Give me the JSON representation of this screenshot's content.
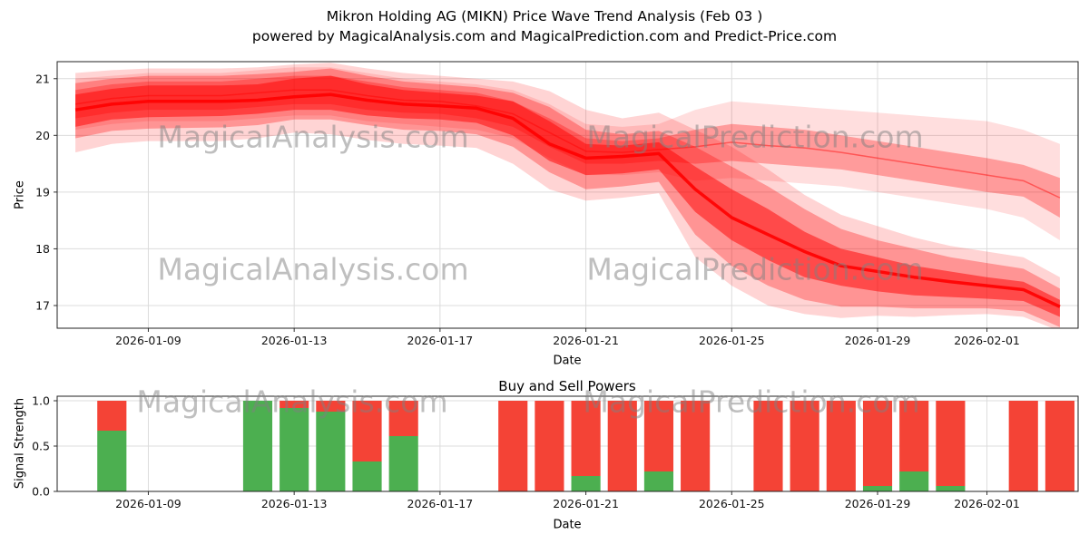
{
  "figure": {
    "title_line1": "Mikron Holding AG (MIKN) Price Wave Trend Analysis (Feb 03 )",
    "title_line2": "powered by MagicalAnalysis.com and MagicalPrediction.com and Predict-Price.com"
  },
  "watermarks": {
    "left": "MagicalAnalysis.com",
    "right": "MagicalPrediction.com"
  },
  "chart_data": [
    {
      "type": "area",
      "title": "",
      "xlabel": "Date",
      "ylabel": "Price",
      "color": "#ff0000",
      "grid": true,
      "ylim": [
        16.6,
        21.3
      ],
      "yticks": [
        17,
        18,
        19,
        20,
        21
      ],
      "ytick_labels": [
        "17",
        "18",
        "19",
        "20",
        "21"
      ],
      "xtick_days": [
        2,
        6,
        10,
        14,
        18,
        22,
        25
      ],
      "xtick_labels": [
        "2026-01-09",
        "2026-01-13",
        "2026-01-17",
        "2026-01-21",
        "2026-01-25",
        "2026-01-29",
        "2026-02-01"
      ],
      "dates": [
        "2026-01-07",
        "2026-01-08",
        "2026-01-09",
        "2026-01-10",
        "2026-01-11",
        "2026-01-12",
        "2026-01-13",
        "2026-01-14",
        "2026-01-15",
        "2026-01-16",
        "2026-01-17",
        "2026-01-18",
        "2026-01-19",
        "2026-01-20",
        "2026-01-21",
        "2026-01-22",
        "2026-01-23",
        "2026-01-24",
        "2026-01-25",
        "2026-01-26",
        "2026-01-27",
        "2026-01-28",
        "2026-01-29",
        "2026-01-30",
        "2026-01-31",
        "2026-02-01",
        "2026-02-02",
        "2026-02-03"
      ],
      "series": [
        {
          "name": "upper-scenario-envelope",
          "kind": "band",
          "opacity": 0.13,
          "low": [
            20.1,
            20.2,
            20.25,
            20.25,
            20.25,
            20.3,
            20.35,
            20.35,
            20.25,
            20.2,
            20.15,
            20.1,
            19.95,
            19.6,
            19.3,
            19.3,
            19.35,
            19.2,
            19.25,
            19.2,
            19.15,
            19.1,
            19.0,
            18.9,
            18.8,
            18.7,
            18.55,
            18.15
          ],
          "high": [
            21.0,
            21.05,
            21.1,
            21.1,
            21.1,
            21.15,
            21.2,
            21.2,
            21.1,
            21.0,
            20.95,
            20.9,
            20.8,
            20.55,
            20.2,
            20.15,
            20.2,
            20.45,
            20.6,
            20.55,
            20.5,
            20.45,
            20.4,
            20.35,
            20.3,
            20.25,
            20.1,
            19.85
          ]
        },
        {
          "name": "forecast-envelope",
          "kind": "band",
          "opacity": 0.17,
          "low": [
            19.7,
            19.85,
            19.9,
            19.9,
            19.9,
            19.95,
            20.05,
            20.02,
            19.92,
            19.85,
            19.82,
            19.78,
            19.5,
            19.05,
            18.85,
            18.9,
            18.98,
            17.85,
            17.35,
            17.0,
            16.85,
            16.78,
            16.82,
            16.8,
            16.83,
            16.85,
            16.8,
            16.55
          ],
          "high": [
            21.1,
            21.15,
            21.18,
            21.18,
            21.18,
            21.2,
            21.25,
            21.28,
            21.18,
            21.1,
            21.05,
            21.0,
            20.95,
            20.78,
            20.45,
            20.3,
            20.4,
            20.1,
            19.8,
            19.4,
            18.95,
            18.6,
            18.4,
            18.2,
            18.05,
            17.95,
            17.85,
            17.5
          ]
        },
        {
          "name": "forecast-band-mid",
          "kind": "band",
          "opacity": 0.3,
          "low": [
            19.95,
            20.08,
            20.12,
            20.13,
            20.14,
            20.18,
            20.28,
            20.28,
            20.18,
            20.1,
            20.08,
            20.02,
            19.8,
            19.35,
            19.05,
            19.1,
            19.18,
            18.25,
            17.7,
            17.35,
            17.1,
            16.98,
            16.98,
            16.95,
            16.95,
            16.95,
            16.9,
            16.62
          ],
          "high": [
            20.92,
            21.0,
            21.05,
            21.05,
            21.05,
            21.08,
            21.12,
            21.18,
            21.05,
            20.95,
            20.9,
            20.85,
            20.75,
            20.5,
            20.1,
            20.02,
            20.08,
            19.8,
            19.45,
            19.1,
            18.7,
            18.35,
            18.15,
            18.0,
            17.85,
            17.75,
            17.65,
            17.3
          ]
        },
        {
          "name": "upper-scenario-band",
          "kind": "band",
          "opacity": 0.3,
          "low": [
            20.3,
            20.4,
            20.45,
            20.45,
            20.45,
            20.5,
            20.55,
            20.55,
            20.45,
            20.4,
            20.38,
            20.3,
            20.15,
            19.8,
            19.5,
            19.5,
            19.55,
            19.5,
            19.55,
            19.5,
            19.45,
            19.4,
            19.3,
            19.2,
            19.1,
            19.0,
            18.92,
            18.55
          ],
          "high": [
            20.8,
            20.9,
            20.95,
            20.95,
            20.95,
            21.0,
            21.05,
            21.05,
            20.95,
            20.85,
            20.8,
            20.75,
            20.6,
            20.3,
            19.95,
            19.9,
            19.95,
            20.1,
            20.2,
            20.15,
            20.1,
            20.0,
            19.9,
            19.8,
            19.7,
            19.6,
            19.48,
            19.25
          ]
        },
        {
          "name": "forecast-band-core",
          "kind": "band",
          "opacity": 0.5,
          "low": [
            20.15,
            20.28,
            20.32,
            20.33,
            20.34,
            20.38,
            20.45,
            20.45,
            20.35,
            20.3,
            20.28,
            20.22,
            20.0,
            19.55,
            19.3,
            19.33,
            19.4,
            18.65,
            18.15,
            17.8,
            17.5,
            17.35,
            17.25,
            17.18,
            17.15,
            17.12,
            17.08,
            16.8
          ],
          "high": [
            20.72,
            20.82,
            20.88,
            20.88,
            20.88,
            20.9,
            21.0,
            21.05,
            20.9,
            20.8,
            20.75,
            20.7,
            20.6,
            20.25,
            19.85,
            19.82,
            19.88,
            19.45,
            19.05,
            18.7,
            18.3,
            18.0,
            17.85,
            17.7,
            17.6,
            17.5,
            17.42,
            17.1
          ]
        },
        {
          "name": "median-line",
          "kind": "line",
          "width": 3.5,
          "opacity": 0.9,
          "values": [
            20.45,
            20.55,
            20.6,
            20.6,
            20.6,
            20.62,
            20.68,
            20.72,
            20.62,
            20.55,
            20.52,
            20.48,
            20.3,
            19.85,
            19.6,
            19.63,
            19.68,
            19.05,
            18.55,
            18.25,
            17.95,
            17.7,
            17.6,
            17.5,
            17.42,
            17.35,
            17.28,
            16.98
          ]
        },
        {
          "name": "upper-scenario-line",
          "kind": "line",
          "width": 1.5,
          "opacity": 0.45,
          "values": [
            20.55,
            20.65,
            20.7,
            20.7,
            20.7,
            20.75,
            20.8,
            20.8,
            20.7,
            20.62,
            20.6,
            20.52,
            20.38,
            20.05,
            19.72,
            19.7,
            19.75,
            19.8,
            19.88,
            19.82,
            19.78,
            19.7,
            19.6,
            19.5,
            19.4,
            19.3,
            19.2,
            18.9
          ]
        }
      ]
    },
    {
      "type": "bar",
      "title": "Buy and Sell Powers",
      "xlabel": "Date",
      "ylabel": "Signal Strength",
      "buy_color": "#4caf50",
      "sell_color": "#f44336",
      "grid": true,
      "ylim": [
        0,
        1.05
      ],
      "yticks": [
        0.0,
        0.5,
        1.0
      ],
      "ytick_labels": [
        "0.0",
        "0.5",
        "1.0"
      ],
      "xtick_days": [
        2,
        6,
        10,
        14,
        18,
        22,
        25
      ],
      "xtick_labels": [
        "2026-01-09",
        "2026-01-13",
        "2026-01-17",
        "2026-01-21",
        "2026-01-25",
        "2026-01-29",
        "2026-02-01"
      ],
      "bars": [
        {
          "date": "2026-01-08",
          "buy": 0.67,
          "sell": 0.33
        },
        {
          "date": "2026-01-12",
          "buy": 1.0,
          "sell": 0.0
        },
        {
          "date": "2026-01-13",
          "buy": 0.92,
          "sell": 0.08
        },
        {
          "date": "2026-01-14",
          "buy": 0.88,
          "sell": 0.12
        },
        {
          "date": "2026-01-15",
          "buy": 0.33,
          "sell": 0.67
        },
        {
          "date": "2026-01-16",
          "buy": 0.61,
          "sell": 0.39
        },
        {
          "date": "2026-01-19",
          "buy": 0.0,
          "sell": 1.0
        },
        {
          "date": "2026-01-20",
          "buy": 0.0,
          "sell": 1.0
        },
        {
          "date": "2026-01-21",
          "buy": 0.17,
          "sell": 0.83
        },
        {
          "date": "2026-01-22",
          "buy": 0.0,
          "sell": 1.0
        },
        {
          "date": "2026-01-23",
          "buy": 0.22,
          "sell": 0.78
        },
        {
          "date": "2026-01-24",
          "buy": 0.0,
          "sell": 1.0
        },
        {
          "date": "2026-01-26",
          "buy": 0.0,
          "sell": 1.0
        },
        {
          "date": "2026-01-27",
          "buy": 0.0,
          "sell": 1.0
        },
        {
          "date": "2026-01-28",
          "buy": 0.0,
          "sell": 1.0
        },
        {
          "date": "2026-01-29",
          "buy": 0.06,
          "sell": 0.94
        },
        {
          "date": "2026-01-30",
          "buy": 0.22,
          "sell": 0.78
        },
        {
          "date": "2026-01-31",
          "buy": 0.06,
          "sell": 0.94
        },
        {
          "date": "2026-02-02",
          "buy": 0.0,
          "sell": 1.0
        },
        {
          "date": "2026-02-03",
          "buy": 0.0,
          "sell": 1.0
        }
      ]
    }
  ]
}
